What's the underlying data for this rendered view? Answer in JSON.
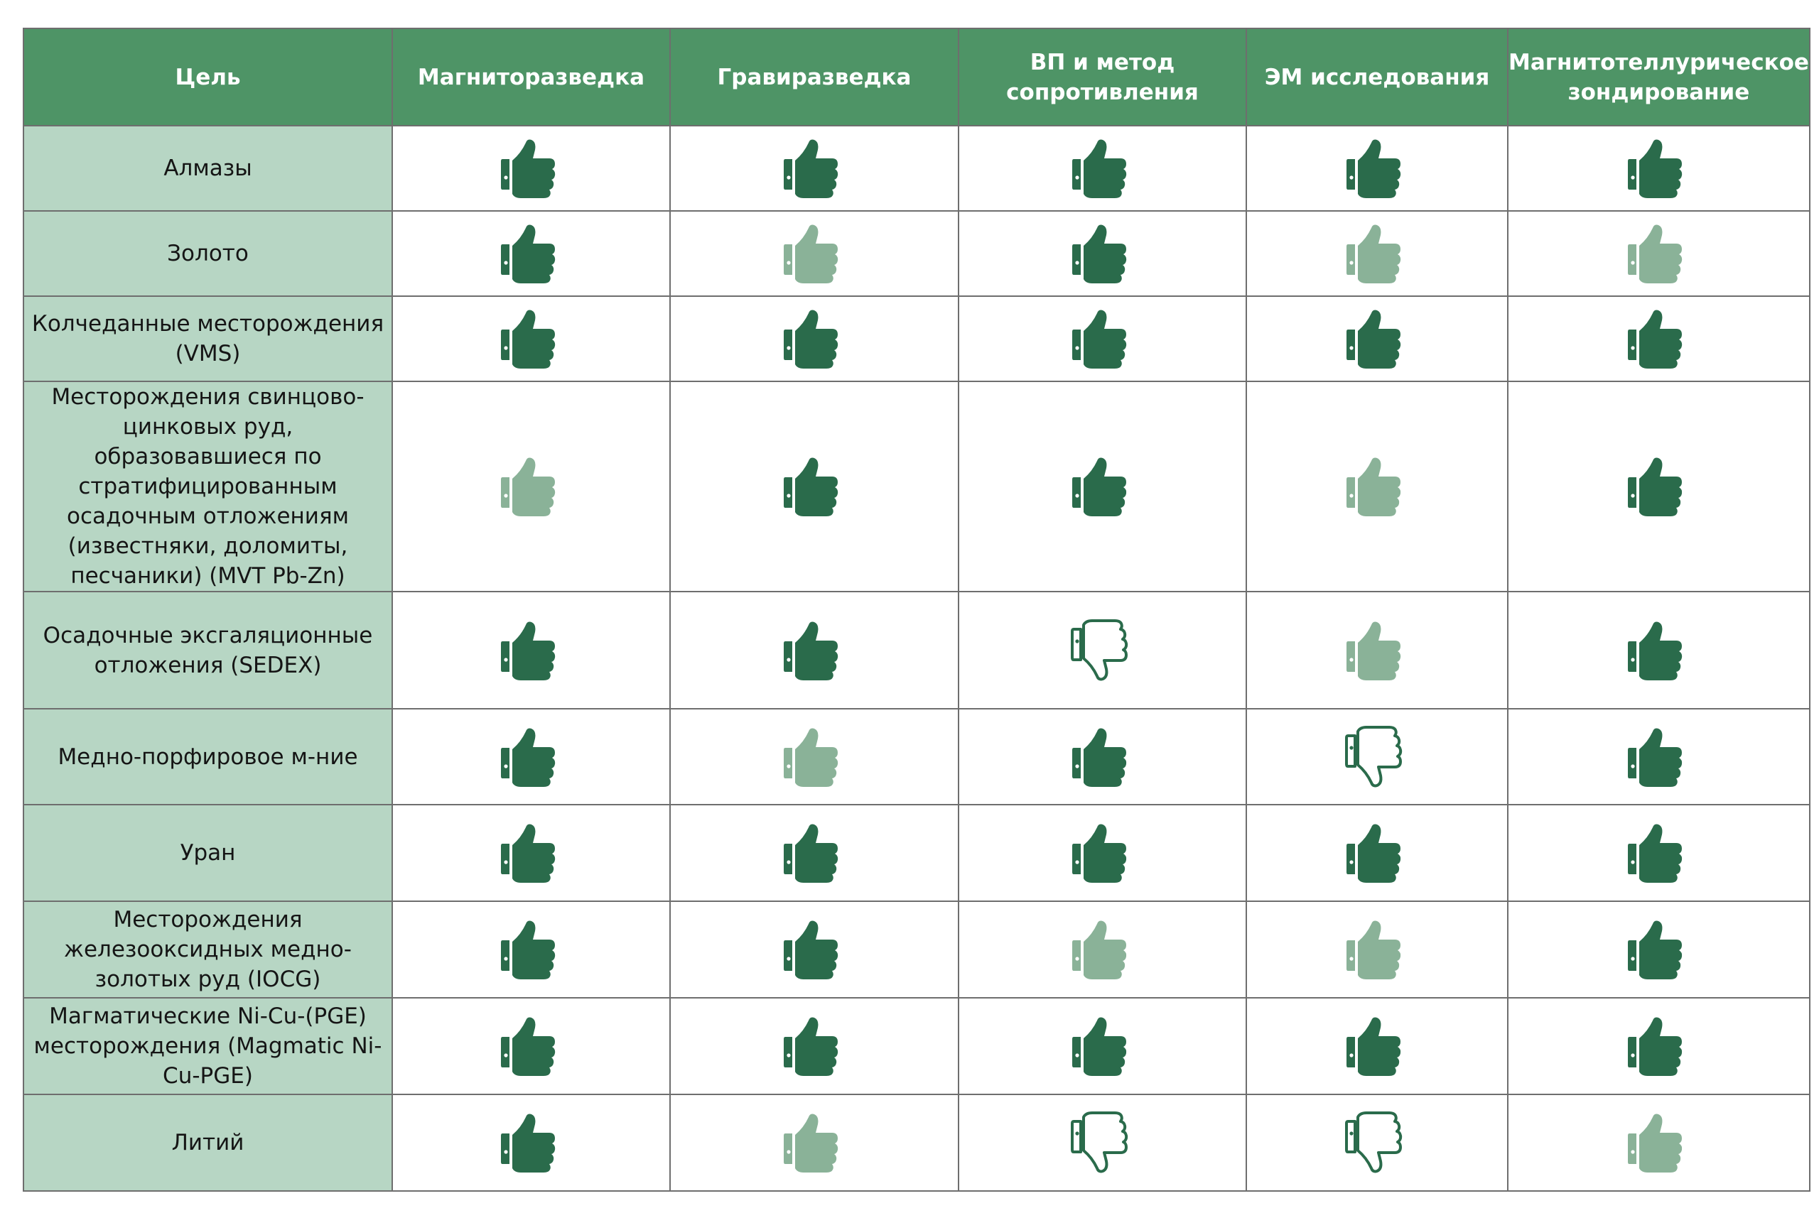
{
  "colors": {
    "header_bg": "#4e9466",
    "target_bg": "#b7d6c4",
    "strong": "#2a6b4b",
    "weak": "#8ab298"
  },
  "legend_icons": {
    "yes": "thumbs-up-icon",
    "partial": "thumbs-up-faded-icon",
    "no": "thumbs-down-icon"
  },
  "table": {
    "headers": [
      "Цель",
      "Магниторазведка",
      "Гравиразведка",
      "ВП и метод сопротивления",
      "ЭМ исследования",
      "Магнитотеллурическое зондирование"
    ],
    "rows": [
      {
        "target": "Алмазы",
        "ratings": [
          "yes",
          "yes",
          "yes",
          "yes",
          "yes"
        ]
      },
      {
        "target": "Золото",
        "ratings": [
          "yes",
          "partial",
          "yes",
          "partial",
          "partial"
        ]
      },
      {
        "target": "Колчеданные месторождения (VMS)",
        "ratings": [
          "yes",
          "yes",
          "yes",
          "yes",
          "yes"
        ]
      },
      {
        "target": "Месторождения свинцово-цинковых руд, образовавшиеся по стратифицированным осадочным отложениям (известняки, доломиты, песчаники) (MVT Pb-Zn)",
        "ratings": [
          "partial",
          "yes",
          "yes",
          "partial",
          "yes"
        ]
      },
      {
        "target": "Осадочные эксгаляционные отложения (SEDEX)",
        "ratings": [
          "yes",
          "yes",
          "no",
          "partial",
          "yes"
        ]
      },
      {
        "target": "Медно-порфировое м-ние",
        "ratings": [
          "yes",
          "partial",
          "yes",
          "no",
          "yes"
        ]
      },
      {
        "target": "Уран",
        "ratings": [
          "yes",
          "yes",
          "yes",
          "yes",
          "yes"
        ]
      },
      {
        "target": "Месторождения железооксидных медно-золотых руд (IOCG)",
        "ratings": [
          "yes",
          "yes",
          "partial",
          "partial",
          "yes"
        ]
      },
      {
        "target": "Магматические Ni-Cu-(PGE) месторождения (Magmatic Ni-Cu-PGE)",
        "ratings": [
          "yes",
          "yes",
          "yes",
          "yes",
          "yes"
        ]
      },
      {
        "target": "Литий",
        "ratings": [
          "yes",
          "partial",
          "no",
          "no",
          "partial"
        ]
      }
    ]
  }
}
